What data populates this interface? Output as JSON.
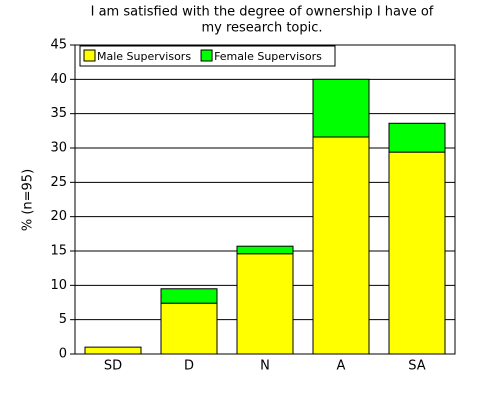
{
  "chart_data": {
    "type": "stacked_bar",
    "title": [
      "I am satisfied with the degree of ownership I have of",
      "my research topic."
    ],
    "y_label": "% (n=95)",
    "categories": [
      "SD",
      "D",
      "N",
      "A",
      "SA"
    ],
    "series": [
      {
        "name": "Male Supervisors",
        "color": "#ffff00",
        "values": [
          1.0,
          7.4,
          14.6,
          31.6,
          29.4
        ]
      },
      {
        "name": "Female Supervisors",
        "color": "#00ff00",
        "values": [
          0,
          2.1,
          1.1,
          8.4,
          4.2
        ]
      }
    ],
    "ylim": [
      0,
      45
    ],
    "yticks": [
      0,
      5,
      10,
      15,
      20,
      25,
      30,
      35,
      40,
      45
    ],
    "grid": true,
    "legend": "top-left"
  }
}
